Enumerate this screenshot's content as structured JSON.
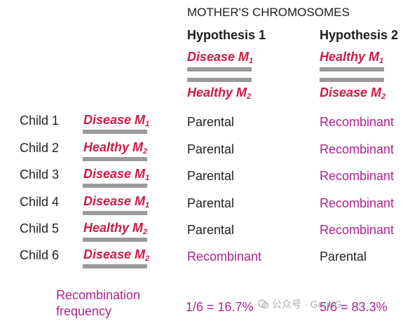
{
  "title": "MOTHER'S CHROMOSOMES",
  "hypotheses": [
    {
      "label": "Hypothesis 1",
      "top_allele": {
        "name": "Disease M",
        "sub": "1"
      },
      "bottom_allele": {
        "name": "Healthy M",
        "sub": "2"
      }
    },
    {
      "label": "Hypothesis 2",
      "top_allele": {
        "name": "Healthy M",
        "sub": "1"
      },
      "bottom_allele": {
        "name": "Disease M",
        "sub": "2"
      }
    }
  ],
  "children": [
    {
      "label": "Child 1",
      "allele": {
        "name": "Disease M",
        "sub": "1"
      },
      "h1": "Parental",
      "h2": "Recombinant"
    },
    {
      "label": "Child 2",
      "allele": {
        "name": "Healthy M",
        "sub": "2"
      },
      "h1": "Parental",
      "h2": "Recombinant"
    },
    {
      "label": "Child 3",
      "allele": {
        "name": "Disease M",
        "sub": "1"
      },
      "h1": "Parental",
      "h2": "Recombinant"
    },
    {
      "label": "Child 4",
      "allele": {
        "name": "Disease M",
        "sub": "1"
      },
      "h1": "Parental",
      "h2": "Recombinant"
    },
    {
      "label": "Child 5",
      "allele": {
        "name": "Healthy M",
        "sub": "2"
      },
      "h1": "Parental",
      "h2": "Recombinant"
    },
    {
      "label": "Child 6",
      "allele": {
        "name": "Disease M",
        "sub": "2"
      },
      "h1": "Recombinant",
      "h2": "Parental"
    }
  ],
  "recombination": {
    "label": "Recombination frequency",
    "h1_value": "1/6 = 16.7%",
    "h2_value": "5/6 = 83.3%"
  },
  "watermark": "公众号 · GeneG...",
  "colors": {
    "allele": "#cc1b45",
    "recombinant": "#b0228f",
    "parental": "#222222",
    "bar": "#9a9a9a"
  }
}
